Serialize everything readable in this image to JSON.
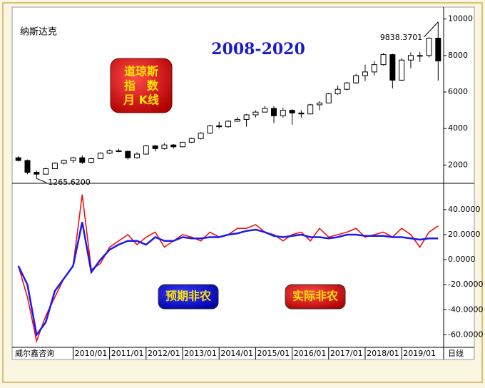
{
  "chart_data": [
    {
      "type": "candlestick",
      "title": "纳斯达克",
      "subtitle": "2008-2020",
      "annotations": [
        "道琼斯",
        "指　数",
        "月 K线"
      ],
      "x": [
        2008.5,
        2008.75,
        2009,
        2009.25,
        2009.5,
        2009.75,
        2010,
        2010.25,
        2010.5,
        2010.75,
        2011,
        2011.25,
        2011.5,
        2011.75,
        2012,
        2012.25,
        2012.5,
        2012.75,
        2013,
        2013.25,
        2013.5,
        2013.75,
        2014,
        2014.25,
        2014.5,
        2014.75,
        2015,
        2015.25,
        2015.5,
        2015.75,
        2016,
        2016.25,
        2016.5,
        2016.75,
        2017,
        2017.25,
        2017.5,
        2017.75,
        2018,
        2018.25,
        2018.5,
        2018.75,
        2019,
        2019.25,
        2019.5,
        2019.75,
        2020
      ],
      "open": [
        2400,
        2250,
        1600,
        1500,
        1800,
        2100,
        2250,
        2400,
        2150,
        2350,
        2650,
        2780,
        2750,
        2400,
        2600,
        3050,
        2900,
        3100,
        3000,
        3250,
        3450,
        3750,
        4150,
        4100,
        4400,
        4500,
        4750,
        4900,
        5100,
        4700,
        5000,
        4850,
        4800,
        5300,
        5400,
        5900,
        6150,
        6500,
        6900,
        7100,
        7500,
        8050,
        6650,
        7750,
        8000,
        8000,
        8950
      ],
      "high": [
        2480,
        2300,
        1700,
        1850,
        2150,
        2300,
        2450,
        2530,
        2400,
        2700,
        2850,
        2890,
        2800,
        2700,
        3100,
        3100,
        3200,
        3150,
        3270,
        3500,
        3800,
        4200,
        4370,
        4450,
        4620,
        4800,
        5000,
        5230,
        5220,
        5150,
        5050,
        5000,
        5350,
        5500,
        5950,
        6350,
        6550,
        7000,
        7500,
        7700,
        8130,
        8100,
        7850,
        8170,
        8200,
        9000,
        9838.3701
      ],
      "low": [
        2200,
        1500,
        1265.62,
        1480,
        1780,
        2030,
        2100,
        2060,
        2100,
        2340,
        2600,
        2700,
        2300,
        2350,
        2580,
        2750,
        2850,
        2900,
        2980,
        3200,
        3400,
        3700,
        4000,
        4050,
        4380,
        4100,
        4600,
        4900,
        4300,
        4600,
        4200,
        4600,
        4780,
        5000,
        5380,
        5850,
        6100,
        6450,
        6600,
        6900,
        7450,
        6200,
        6600,
        7300,
        7650,
        7900,
        6630
      ],
      "close": [
        2250,
        1600,
        1500,
        1800,
        2100,
        2250,
        2400,
        2150,
        2350,
        2650,
        2780,
        2750,
        2400,
        2600,
        3050,
        2900,
        3100,
        3000,
        3250,
        3450,
        3750,
        4150,
        4100,
        4400,
        4500,
        4750,
        4900,
        5100,
        4700,
        5000,
        4850,
        4800,
        5300,
        5400,
        5900,
        6150,
        6500,
        6900,
        7100,
        7500,
        8050,
        6650,
        7750,
        8000,
        8000,
        8950,
        7700
      ],
      "high_label": "9838.3701",
      "low_label": "1265.6200",
      "xlim": [
        2008.33,
        2020.15
      ],
      "ylim": [
        1000,
        10650
      ],
      "yticks": [
        2000,
        4000,
        6000,
        8000,
        10000
      ],
      "up_color": "#ffffff",
      "down_color": "#000000"
    },
    {
      "type": "line",
      "x": [
        2008.5,
        2008.75,
        2009,
        2009.25,
        2009.5,
        2009.75,
        2010,
        2010.25,
        2010.5,
        2010.75,
        2011,
        2011.25,
        2011.5,
        2011.75,
        2012,
        2012.25,
        2012.5,
        2012.75,
        2013,
        2013.25,
        2013.5,
        2013.75,
        2014,
        2014.25,
        2014.5,
        2014.75,
        2015,
        2015.25,
        2015.5,
        2015.75,
        2016,
        2016.25,
        2016.5,
        2016.75,
        2017,
        2017.25,
        2017.5,
        2017.75,
        2018,
        2018.25,
        2018.5,
        2018.75,
        2019,
        2019.25,
        2019.5,
        2019.75,
        2020
      ],
      "series": [
        {
          "name": "实际非农",
          "color": "#ee1111",
          "values": [
            -5,
            -30,
            -65,
            -45,
            -30,
            -15,
            -5,
            52,
            -8,
            -3,
            10,
            15,
            20,
            12,
            18,
            22,
            10,
            15,
            20,
            18,
            15,
            22,
            18,
            20,
            25,
            25,
            28,
            22,
            20,
            15,
            20,
            22,
            15,
            25,
            18,
            20,
            22,
            25,
            18,
            20,
            22,
            18,
            25,
            20,
            10,
            22,
            27
          ]
        },
        {
          "name": "预期非农",
          "color": "#1a1aee",
          "values": [
            -5,
            -20,
            -60,
            -50,
            -25,
            -15,
            -5,
            30,
            -10,
            0,
            8,
            12,
            15,
            15,
            12,
            18,
            15,
            15,
            18,
            17,
            17,
            18,
            18,
            20,
            21,
            23,
            24,
            22,
            19,
            18,
            19,
            20,
            18,
            18,
            17,
            18,
            20,
            20,
            19,
            19,
            19,
            18,
            18,
            17,
            16,
            17,
            17
          ]
        }
      ],
      "xlim": [
        2008.33,
        2020.15
      ],
      "ylim": [
        -70,
        61
      ],
      "yticks": [
        {
          "value": 40,
          "label": "40.0000"
        },
        {
          "value": 20,
          "label": "20.0000"
        },
        {
          "value": 0,
          "label": "0.0000"
        },
        {
          "value": -20,
          "label": "-20.0000"
        },
        {
          "value": -40,
          "label": "-40.0000"
        },
        {
          "value": -60,
          "label": "-60.0000"
        }
      ],
      "xticks": [
        {
          "value": 2010,
          "label": "2010/01"
        },
        {
          "value": 2011,
          "label": "2011/01"
        },
        {
          "value": 2012,
          "label": "2012/01"
        },
        {
          "value": 2013,
          "label": "2013/01"
        },
        {
          "value": 2014,
          "label": "2014/01"
        },
        {
          "value": 2015,
          "label": "2015/01"
        },
        {
          "value": 2016,
          "label": "2016/01"
        },
        {
          "value": 2017,
          "label": "2017/01"
        },
        {
          "value": 2018,
          "label": "2018/01"
        },
        {
          "value": 2019,
          "label": "2019/01"
        }
      ]
    }
  ],
  "footer": {
    "source": "威尔鑫咨询",
    "period": "日线"
  }
}
